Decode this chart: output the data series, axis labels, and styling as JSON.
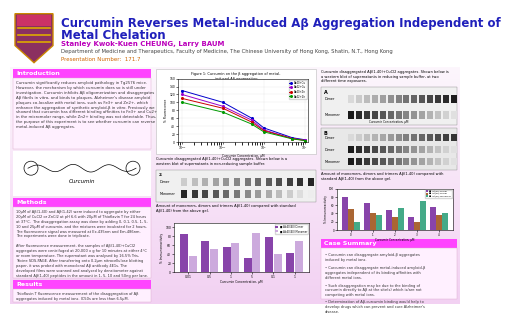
{
  "bg_top": "#ffffff",
  "bg_bottom": "#f0d0f0",
  "title_line1": "Curcumin Reverses Metal-induced Aβ Aggregation Independent of",
  "title_line2": "Metal Chelation",
  "title_color": "#2020bb",
  "title_fontsize": 8.5,
  "authors": "Stanley Kwok-Kuen CHEUNG, Larry BAUM",
  "authors_color": "#bb00bb",
  "authors_fontsize": 5.0,
  "affiliation": "Department of Medicine and Therapeutics, Faculty of Medicine, The Chinese University of Hong Kong, Shatin, N.T., Hong Kong",
  "affiliation_color": "#444444",
  "affiliation_fontsize": 3.8,
  "presentation": "Presentation Number:  171.7",
  "presentation_color": "#cc6600",
  "presentation_fontsize": 4.0,
  "section_header_color": "#ff44ff",
  "section_text_color": "#333333",
  "intro_title": "Introduction",
  "methods_title": "Methods",
  "results_title": "Results",
  "conclusions_title": "Case Summary",
  "intro_text": "Curcumin significantly reduces amyloid pathology in Tg2576 mice.\nHowever, the mechanism by which curcumin does so is still under\ninvestigation. Curcumin inhibits Aβ oligomerization and disaggregates\nAβ fibrils in vitro, and binds to plaques. Alzheimer's disease amyloid\nplaques co-localize with metal ions, such as Fe3+ and Zn2+, which\nenhance the aggregation of synthetic amyloid-β in vitro. Previously we\nshowed that curcumin has different binding affinities to Fe3+ and Cu2+\nin the micromolar range, while Zn2+ binding was not detectable. Thus,\nthe purpose of this experiment is to see whether curcumin can reverse\nmetal-induced Aβ aggregates.",
  "methods_text": "10μM of Aβ(1-40) and Aβ(1-42) were induced to aggregate by either\n20μM of CuCl2 or ZnCl2 at pH 6.6 with 20μM of Thioflavin T for 24 hours\nat 37°C.  The disaggregation assay was done by adding 0, 0.1, 0.5, 1, 5,\n10 and 25μM of curcumin, and the mixtures were incubated for 2 hours.\nThe fluorescence signal was measured at Ex-435nm and Em-486nm.\nThe experiments were done in triplicate.\n\nAfter fluorescence measurement, the samples of Aβ(1-40)+CuCl2\naggregates were centrifuged at 20,000 x g for 10 minutes at either 4°C\nor room temperature. The supernatant was analysed by 16.5% Tris-\nTricine SDS-PAGE. After transferring onto 0.2μm nitrocellulose blotting\npaper, it was probed with monoclonal Aβ antibody 4E1s. The\ndeveloped films were scanned and analysed by densitometer against\nstandard Aβ(1-40) peptides in the amount in 1, 5, 10 and 50ng per lane.",
  "results_text": "Thioflavin T fluorescence measurement of the disaggregation of Aβ\naggregates induced by metal ions. IC50s are less than 6.5μM.",
  "conclusion_bullets": [
    "Curcumin can disaggregate amyloid-β aggregates\ninduced by metal ions.",
    "Curcumin can disaggregate metal-induced amyloid-β\naggregates independent of its binding affinities with\ndifferent metal ions.",
    "Such disaggregation may be due to the binding of\ncurcumin directly to Aβ at the site(s) which is/are not\ncompeting with metal ions.",
    "Determination of Aβ-curcumin binding would help to\ndevelop drugs which can prevent and cure Alzheimer's\ndisease."
  ],
  "fig1_caption": "Curcumin disaggregated Aβ(1-40)+CuCl2 aggregates. Shown below is a\nwestern blot of supernatants in non-reducing sample buffer.",
  "fig2_caption": "Amount of monomers, dimers and trimers Aβ(1-40) compared with standard\nAβ(1-40) from the above gel.",
  "fig_right_caption": "Curcumin disaggregated Aβ(1-40)+CuCl2 aggregates. Shown below is\na western blot of supernatants in reducing sample buffer, at two\ndifferent time exposures.",
  "fig_right_bar_caption": "Amount of monomers, dimers and trimers Aβ(1-40) compared with\nstandard Aβ(1-40) from the above gel."
}
